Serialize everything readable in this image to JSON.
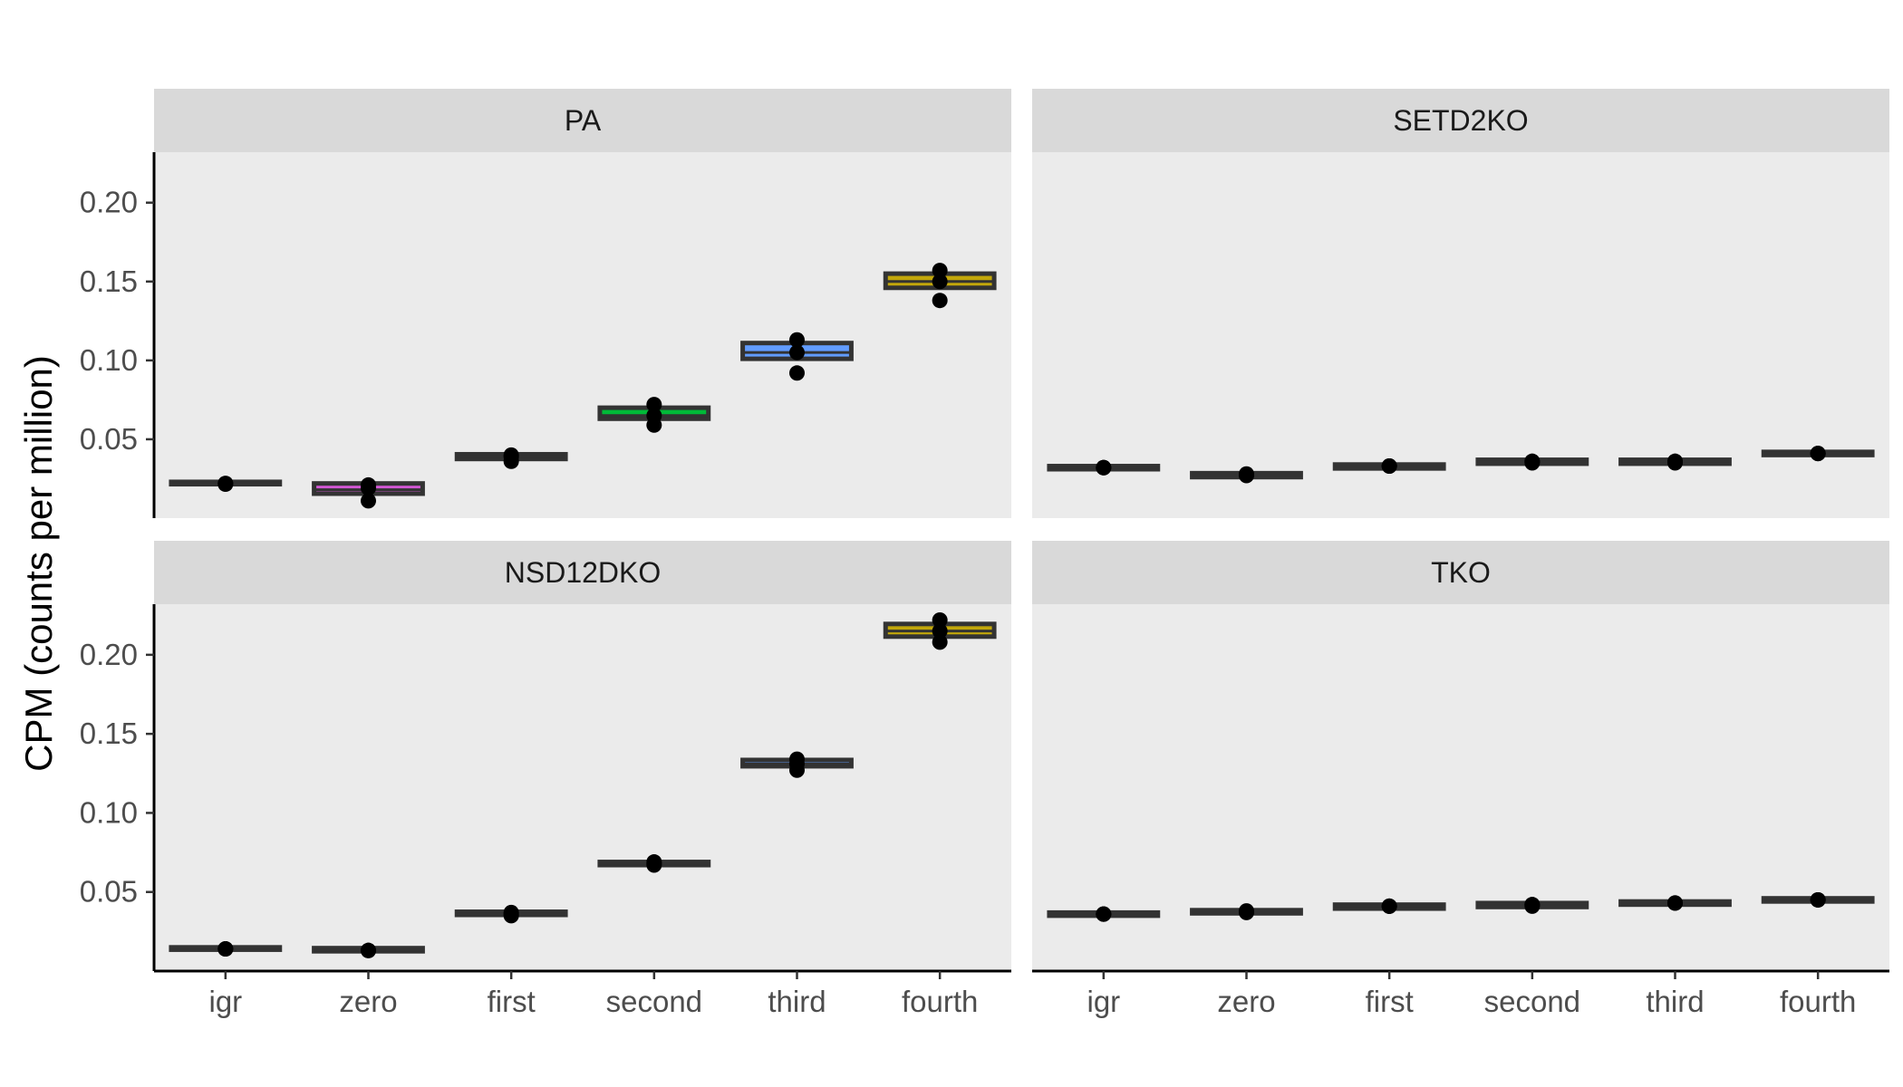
{
  "chart_data": {
    "type": "boxplot",
    "layout": "facet-wrap 2x2",
    "ylabel": "CPM (counts per million)",
    "xlabel": "",
    "categories": [
      "igr",
      "zero",
      "first",
      "second",
      "third",
      "fourth"
    ],
    "yticks": [
      0.05,
      0.1,
      0.15,
      0.2
    ],
    "ytick_labels": [
      "0.05",
      "0.10",
      "0.15",
      "0.20"
    ],
    "ylim_top_row": [
      0.0,
      0.232
    ],
    "ylim_bottom_row": [
      0.0,
      0.232
    ],
    "fill_colors": {
      "igr": "#F8766D",
      "zero": "#D358D5",
      "first": "#B79F00",
      "second": "#00BA38",
      "third": "#619CFF",
      "fourth": "#C2A70A"
    },
    "panels": [
      {
        "title": "PA",
        "boxes": [
          {
            "category": "igr",
            "q1": 0.0215,
            "median": 0.022,
            "q3": 0.023,
            "points": [
              0.0215,
              0.022,
              0.022
            ]
          },
          {
            "category": "zero",
            "q1": 0.0155,
            "median": 0.018,
            "q3": 0.022,
            "points": [
              0.011,
              0.019,
              0.021
            ]
          },
          {
            "category": "first",
            "q1": 0.0375,
            "median": 0.039,
            "q3": 0.0405,
            "points": [
              0.036,
              0.039,
              0.04
            ]
          },
          {
            "category": "second",
            "q1": 0.063,
            "median": 0.065,
            "q3": 0.07,
            "points": [
              0.059,
              0.065,
              0.072
            ]
          },
          {
            "category": "third",
            "q1": 0.101,
            "median": 0.105,
            "q3": 0.111,
            "points": [
              0.092,
              0.105,
              0.113
            ]
          },
          {
            "category": "fourth",
            "q1": 0.146,
            "median": 0.15,
            "q3": 0.155,
            "points": [
              0.138,
              0.15,
              0.157
            ]
          }
        ]
      },
      {
        "title": "SETD2KO",
        "boxes": [
          {
            "category": "igr",
            "q1": 0.031,
            "median": 0.032,
            "q3": 0.033,
            "points": [
              0.032,
              0.032,
              0.032
            ]
          },
          {
            "category": "zero",
            "q1": 0.026,
            "median": 0.027,
            "q3": 0.0285,
            "points": [
              0.027,
              0.0275,
              0.028
            ]
          },
          {
            "category": "first",
            "q1": 0.0315,
            "median": 0.033,
            "q3": 0.034,
            "points": [
              0.033,
              0.033,
              0.033
            ]
          },
          {
            "category": "second",
            "q1": 0.0345,
            "median": 0.0355,
            "q3": 0.037,
            "points": [
              0.035,
              0.036,
              0.036
            ]
          },
          {
            "category": "third",
            "q1": 0.0345,
            "median": 0.036,
            "q3": 0.037,
            "points": [
              0.035,
              0.036,
              0.036
            ]
          },
          {
            "category": "fourth",
            "q1": 0.04,
            "median": 0.041,
            "q3": 0.042,
            "points": [
              0.041,
              0.041,
              0.041
            ]
          }
        ]
      },
      {
        "title": "NSD12DKO",
        "boxes": [
          {
            "category": "igr",
            "q1": 0.0135,
            "median": 0.014,
            "q3": 0.015,
            "points": [
              0.014,
              0.014,
              0.014
            ]
          },
          {
            "category": "zero",
            "q1": 0.0125,
            "median": 0.013,
            "q3": 0.0145,
            "points": [
              0.013,
              0.013,
              0.013
            ]
          },
          {
            "category": "first",
            "q1": 0.0355,
            "median": 0.036,
            "q3": 0.0375,
            "points": [
              0.035,
              0.036,
              0.037
            ]
          },
          {
            "category": "second",
            "q1": 0.067,
            "median": 0.068,
            "q3": 0.069,
            "points": [
              0.067,
              0.068,
              0.069
            ]
          },
          {
            "category": "third",
            "q1": 0.1295,
            "median": 0.131,
            "q3": 0.1335,
            "points": [
              0.127,
              0.131,
              0.134
            ]
          },
          {
            "category": "fourth",
            "q1": 0.2115,
            "median": 0.215,
            "q3": 0.2195,
            "points": [
              0.208,
              0.215,
              0.222
            ]
          }
        ]
      },
      {
        "title": "TKO",
        "boxes": [
          {
            "category": "igr",
            "q1": 0.035,
            "median": 0.036,
            "q3": 0.037,
            "points": [
              0.036,
              0.036,
              0.036
            ]
          },
          {
            "category": "zero",
            "q1": 0.0365,
            "median": 0.0375,
            "q3": 0.0385,
            "points": [
              0.037,
              0.0375,
              0.038
            ]
          },
          {
            "category": "first",
            "q1": 0.0395,
            "median": 0.041,
            "q3": 0.042,
            "points": [
              0.041,
              0.041,
              0.041
            ]
          },
          {
            "category": "second",
            "q1": 0.0405,
            "median": 0.0415,
            "q3": 0.043,
            "points": [
              0.041,
              0.042,
              0.042
            ]
          },
          {
            "category": "third",
            "q1": 0.042,
            "median": 0.043,
            "q3": 0.044,
            "points": [
              0.043,
              0.043,
              0.043
            ]
          },
          {
            "category": "fourth",
            "q1": 0.044,
            "median": 0.045,
            "q3": 0.046,
            "points": [
              0.045,
              0.045,
              0.045
            ]
          }
        ]
      }
    ]
  }
}
